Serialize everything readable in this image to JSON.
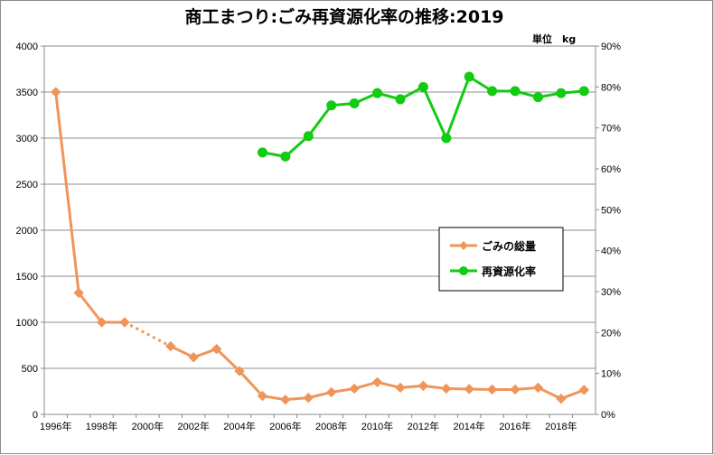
{
  "chart_data": {
    "type": "line",
    "title": "商工まつり:ごみ再資源化率の推移:2019",
    "unit_label": "単位　kg",
    "x": [
      1996,
      1997,
      1998,
      1999,
      2000,
      2001,
      2002,
      2003,
      2004,
      2005,
      2006,
      2007,
      2008,
      2009,
      2010,
      2011,
      2012,
      2013,
      2014,
      2015,
      2016,
      2017,
      2018,
      2019
    ],
    "x_tick_labels": [
      "1996年",
      "1998年",
      "2000年",
      "2002年",
      "2004年",
      "2006年",
      "2008年",
      "2010年",
      "2012年",
      "2014年",
      "2016年",
      "2018年"
    ],
    "y_left_ticks": [
      "0",
      "500",
      "1000",
      "1500",
      "2000",
      "2500",
      "3000",
      "3500",
      "4000"
    ],
    "y_right_ticks": [
      "0%",
      "10%",
      "20%",
      "30%",
      "40%",
      "50%",
      "60%",
      "70%",
      "80%",
      "90%"
    ],
    "ylim_left": [
      0,
      4000
    ],
    "ylim_right": [
      0,
      90
    ],
    "grid": "horizontal",
    "legend_position": "right-middle",
    "series": [
      {
        "name": "ごみの総量",
        "axis": "left",
        "color": "#f0955a",
        "marker": "diamond",
        "values": [
          3500,
          1320,
          1000,
          1000,
          null,
          740,
          620,
          710,
          470,
          200,
          160,
          180,
          240,
          280,
          350,
          290,
          310,
          280,
          275,
          270,
          270,
          290,
          170,
          265
        ],
        "dotted_segment": [
          1999,
          2001
        ]
      },
      {
        "name": "再資源化率",
        "axis": "right",
        "color": "#11cc11",
        "marker": "circle",
        "values": [
          null,
          null,
          null,
          null,
          null,
          null,
          null,
          null,
          null,
          64,
          63,
          68,
          75.5,
          76,
          78.5,
          77,
          80,
          67.5,
          82.5,
          79,
          79,
          77.5,
          78.5,
          79
        ]
      }
    ]
  }
}
